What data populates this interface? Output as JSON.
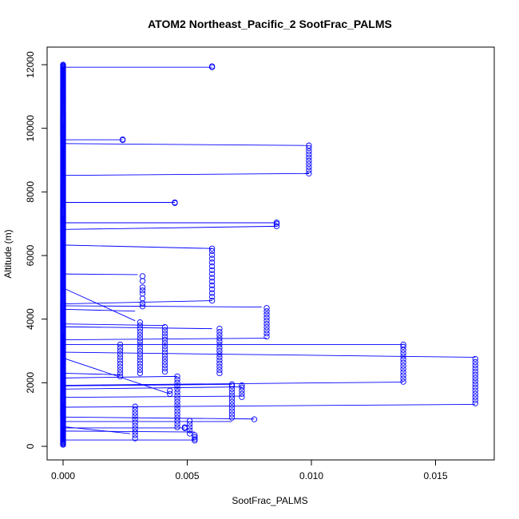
{
  "chart_data": {
    "type": "scatter",
    "title": "ATOM2 Northeast_Pacific_2 SootFrac_PALMS",
    "xlabel": "SootFrac_PALMS",
    "ylabel": "Altitude (m)",
    "xlim": [
      0,
      0.017
    ],
    "ylim": [
      0,
      12000
    ],
    "x_ticks": [
      0.0,
      0.005,
      0.01,
      0.015
    ],
    "x_tick_labels": [
      "0.000",
      "0.005",
      "0.010",
      "0.015"
    ],
    "y_ticks": [
      0,
      2000,
      4000,
      6000,
      8000,
      10000,
      12000
    ],
    "y_tick_labels": [
      "0",
      "2000",
      "4000",
      "6000",
      "8000",
      "10000",
      "12000"
    ],
    "grid": false,
    "legend": "none",
    "color": "#0000ff",
    "series": [
      {
        "style": "points-with-connecting-line",
        "profiles": [
          {
            "x": 0.006,
            "y": [
              11920,
              11950
            ]
          },
          {
            "x": 0.0024,
            "y": [
              9630,
              9650
            ]
          },
          {
            "x": 0.0099,
            "y": [
              8580,
              8680,
              8780,
              8880,
              8980,
              9080,
              9180,
              9280,
              9380,
              9460
            ]
          },
          {
            "x": 0.0045,
            "y": [
              7650,
              7670
            ]
          },
          {
            "x": 0.0086,
            "y": [
              6920,
              7000,
              7040
            ]
          },
          {
            "x": 0.006,
            "y": [
              4580,
              4700,
              4820,
              4940,
              5060,
              5180,
              5300,
              5420,
              5540,
              5660,
              5780,
              5900,
              6020,
              6140,
              6220
            ]
          },
          {
            "x": 0.0032,
            "y": [
              4400,
              4500,
              4650,
              4800,
              4900,
              5000,
              5200,
              5350
            ]
          },
          {
            "x": 0.0082,
            "y": [
              3450,
              3550,
              3650,
              3750,
              3850,
              3950,
              4050,
              4150,
              4250,
              4350
            ]
          },
          {
            "x": 0.0031,
            "y": [
              2300,
              2400,
              2500,
              2600,
              2700,
              2800,
              2900,
              3000,
              3100,
              3200,
              3300,
              3400,
              3500,
              3600,
              3700,
              3800,
              3900
            ]
          },
          {
            "x": 0.0041,
            "y": [
              2350,
              2450,
              2550,
              2650,
              2750,
              2850,
              2950,
              3050,
              3150,
              3250,
              3350,
              3450,
              3550,
              3650,
              3750
            ]
          },
          {
            "x": 0.0063,
            "y": [
              2300,
              2400,
              2500,
              2600,
              2700,
              2800,
              2900,
              3000,
              3100,
              3200,
              3300,
              3400,
              3500,
              3600,
              3700
            ]
          },
          {
            "x": 0.0023,
            "y": [
              2200,
              2300,
              2400,
              2500,
              2600,
              2700,
              2800,
              2900,
              3000,
              3100,
              3200
            ]
          },
          {
            "x": 0.0137,
            "y": [
              2030,
              2130,
              2230,
              2330,
              2430,
              2530,
              2630,
              2730,
              2830,
              2930,
              3030,
              3130,
              3200
            ]
          },
          {
            "x": 0.0166,
            "y": [
              1350,
              1450,
              1550,
              1650,
              1750,
              1850,
              1950,
              2050,
              2150,
              2250,
              2350,
              2450,
              2550,
              2650,
              2750
            ]
          },
          {
            "x": 0.0046,
            "y": [
              600,
              700,
              800,
              900,
              1000,
              1100,
              1200,
              1300,
              1400,
              1500,
              1600,
              1700,
              1800,
              1900,
              2000,
              2100,
              2200
            ]
          },
          {
            "x": 0.0068,
            "y": [
              900,
              1000,
              1100,
              1200,
              1300,
              1400,
              1500,
              1600,
              1700,
              1800,
              1900,
              1950
            ]
          },
          {
            "x": 0.0072,
            "y": [
              1550,
              1650,
              1750,
              1850,
              1920
            ]
          },
          {
            "x": 0.0043,
            "y": [
              1650,
              1750
            ]
          },
          {
            "x": 0.0077,
            "y": [
              850
            ]
          },
          {
            "x": 0.0029,
            "y": [
              250,
              350,
              450,
              550,
              650,
              750,
              850,
              950,
              1050,
              1150,
              1250
            ]
          },
          {
            "x": 0.0051,
            "y": [
              400,
              500,
              600,
              700,
              800
            ]
          },
          {
            "x": 0.0049,
            "y": [
              570,
              600
            ]
          },
          {
            "x": 0.0053,
            "y": [
              180,
              230,
              290,
              350
            ]
          }
        ],
        "base_column": {
          "x": 0.0,
          "y_range": [
            50,
            12000
          ]
        },
        "connectors": [
          {
            "y0": 11920,
            "y1": 11920,
            "x1": 0.006
          },
          {
            "y0": 9640,
            "y1": 9640,
            "x1": 0.0024
          },
          {
            "y0": 9520,
            "y1": 9460,
            "x1": 0.0099
          },
          {
            "y0": 8520,
            "y1": 8580,
            "x1": 0.0099
          },
          {
            "y0": 7670,
            "y1": 7670,
            "x1": 0.0045
          },
          {
            "y0": 7030,
            "y1": 7030,
            "x1": 0.0086
          },
          {
            "y0": 6820,
            "y1": 6920,
            "x1": 0.0086
          },
          {
            "y0": 6330,
            "y1": 6220,
            "x1": 0.006
          },
          {
            "y0": 5420,
            "y1": 5400,
            "x1": 0.003
          },
          {
            "y0": 4980,
            "y1": 3950,
            "x1": 0.0029
          },
          {
            "y0": 4480,
            "y1": 4580,
            "x1": 0.006
          },
          {
            "y0": 4420,
            "y1": 4380,
            "x1": 0.008
          },
          {
            "y0": 4310,
            "y1": 4250,
            "x1": 0.0029
          },
          {
            "y0": 3850,
            "y1": 3800,
            "x1": 0.0041
          },
          {
            "y0": 3760,
            "y1": 3700,
            "x1": 0.006
          },
          {
            "y0": 3350,
            "y1": 3400,
            "x1": 0.0082
          },
          {
            "y0": 3200,
            "y1": 3200,
            "x1": 0.0137
          },
          {
            "y0": 2960,
            "y1": 2800,
            "x1": 0.0166
          },
          {
            "y0": 2780,
            "y1": 1650,
            "x1": 0.0043
          },
          {
            "y0": 2300,
            "y1": 2250,
            "x1": 0.0023
          },
          {
            "y0": 2150,
            "y1": 2200,
            "x1": 0.0046
          },
          {
            "y0": 1920,
            "y1": 2020,
            "x1": 0.0137
          },
          {
            "y0": 1900,
            "y1": 1950,
            "x1": 0.0068
          },
          {
            "y0": 1800,
            "y1": 1870,
            "x1": 0.0072
          },
          {
            "y0": 1540,
            "y1": 1580,
            "x1": 0.0072
          },
          {
            "y0": 1230,
            "y1": 1320,
            "x1": 0.0166
          },
          {
            "y0": 920,
            "y1": 860,
            "x1": 0.0077
          },
          {
            "y0": 780,
            "y1": 780,
            "x1": 0.0068
          },
          {
            "y0": 620,
            "y1": 400,
            "x1": 0.0027
          },
          {
            "y0": 580,
            "y1": 580,
            "x1": 0.0049
          },
          {
            "y0": 480,
            "y1": 450,
            "x1": 0.0053
          },
          {
            "y0": 200,
            "y1": 200,
            "x1": 0.0053
          }
        ]
      }
    ]
  }
}
